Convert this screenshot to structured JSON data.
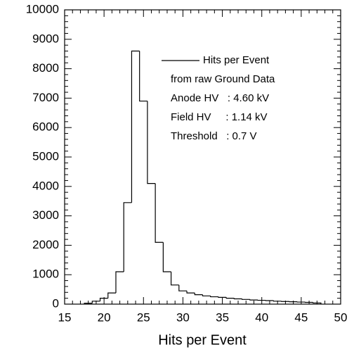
{
  "chart_data": {
    "type": "histogram",
    "xlabel": "Hits per Event",
    "legend": "Hits per Event",
    "annotations": [
      "from raw Ground Data",
      "Anode HV   : 4.60 kV",
      "Field HV     : 1.14 kV",
      "Threshold   : 0.7 V"
    ],
    "bins": [
      17.5,
      18.5,
      19.5,
      20.5,
      21.5,
      22.5,
      23.5,
      24.5,
      25.5,
      26.5,
      27.5,
      28.5,
      29.5,
      30.5,
      31.5,
      32.5,
      33.5,
      34.5,
      35.5,
      36.5,
      37.5,
      38.5,
      39.5,
      40.5,
      41.5,
      42.5,
      43.5,
      44.5,
      45.5,
      46.5,
      47.5
    ],
    "values": [
      30,
      100,
      200,
      380,
      1100,
      3450,
      8600,
      6900,
      4100,
      2100,
      1100,
      650,
      450,
      380,
      320,
      280,
      250,
      230,
      200,
      180,
      160,
      140,
      130,
      120,
      100,
      90,
      80,
      70,
      60,
      40
    ],
    "color": "#000000",
    "xlim": [
      15,
      50
    ],
    "xticks": [
      15,
      20,
      25,
      30,
      35,
      40,
      45,
      50
    ],
    "ylim": [
      0,
      10000
    ],
    "yticks": [
      0,
      1000,
      2000,
      3000,
      4000,
      5000,
      6000,
      7000,
      8000,
      9000,
      10000
    ]
  }
}
